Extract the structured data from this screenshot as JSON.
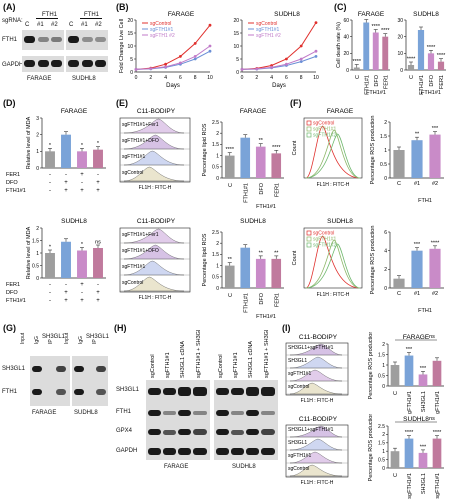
{
  "panels": {
    "A": {
      "label": "(A)",
      "sgrna_label": "sgRNA:",
      "lanes": [
        "C",
        "#1",
        "#2",
        "C",
        "#1",
        "#2"
      ],
      "group_headers": [
        "FTH1",
        "FTH1"
      ],
      "proteins": [
        "FTH1",
        "GAPDH"
      ],
      "cells": [
        "FARAGE",
        "SUDHL8"
      ]
    },
    "B": {
      "label": "(B)",
      "ylabel": "Fold Change Live Cell"
    },
    "C": {
      "label": "(C)",
      "ylabel": "Cell death rate (%)"
    },
    "D": {
      "label": "(D)",
      "ylabel": "Relative level of MDA",
      "row_labels": [
        "FER1",
        "DFO",
        "FTH1#1"
      ],
      "signs": [
        [
          "-",
          "-",
          "+",
          "-"
        ],
        [
          "-",
          "+",
          "-",
          "+"
        ],
        [
          "-",
          "+",
          "+",
          "+"
        ]
      ]
    },
    "E": {
      "label": "(E)",
      "probe": "C11-BODIPY",
      "flow_xlabel": "FL1H : FITC-H",
      "flow_ylabel": "Percentage lipid ROS"
    },
    "F": {
      "label": "(F)",
      "flow_xlabel": "FL1H : FITC-H",
      "count_label": "Count",
      "ylabel": "Percentage ROS production",
      "legend": [
        "sgControl",
        "sgFTH1#1",
        "sgFTH1#2"
      ]
    },
    "G": {
      "label": "(G)",
      "input_label": "Input",
      "igg_label": "IgG",
      "ip_label": "IP",
      "header": "SH3GL1",
      "proteins": [
        "SH3GL1",
        "FTH1"
      ],
      "cells": [
        "FARAGE",
        "SUDHL8"
      ]
    },
    "H": {
      "label": "(H)",
      "lanes": [
        "sgControl",
        "sgFTH1#1",
        "SH3GL1 cDNA",
        "sgFTH1#1 + SH3GL1 cDNA"
      ],
      "proteins": [
        "SH3GL1",
        "FTH1",
        "GPX4",
        "GAPDH"
      ],
      "cells": [
        "FARAGE",
        "SUDHL8"
      ]
    },
    "I": {
      "label": "(I)",
      "probe": "C11-BODIPY",
      "flow_xlabel": "FL1H : FITC-H",
      "ylabel": "Percentage ROS production",
      "ns": "ns",
      "flow_rows": [
        "SH3GL1+sgFTH1#1",
        "SH3GL1",
        "sgFTH1#1",
        "sgControl"
      ]
    }
  },
  "chart_data": [
    {
      "id": "B-FARAGE",
      "type": "line",
      "title": "FARAGE",
      "xlabel": "Days",
      "x": [
        0,
        2,
        4,
        6,
        8,
        10
      ],
      "xlim": [
        0,
        10
      ],
      "ylim": [
        0,
        20
      ],
      "yticks": [
        0,
        5,
        10,
        15,
        20
      ],
      "series": [
        {
          "name": "sgControl",
          "color": "#e0302d",
          "values": [
            1,
            1.5,
            3,
            6,
            11,
            18
          ]
        },
        {
          "name": "sgFTH1#1",
          "color": "#6b8fd6",
          "values": [
            1,
            1.2,
            1.8,
            3,
            5,
            8
          ]
        },
        {
          "name": "sgFTH1 #2",
          "color": "#c07ac8",
          "values": [
            1,
            1.3,
            2,
            3.5,
            6,
            10
          ]
        }
      ]
    },
    {
      "id": "B-SUDHL8",
      "type": "line",
      "title": "SUDHL8",
      "xlabel": "Days",
      "x": [
        0,
        2,
        4,
        6,
        8,
        10
      ],
      "xlim": [
        0,
        10
      ],
      "ylim": [
        0,
        20
      ],
      "yticks": [
        0,
        5,
        10,
        15,
        20
      ],
      "series": [
        {
          "name": "sgControl",
          "color": "#e0302d",
          "values": [
            1,
            1.4,
            2.5,
            5,
            10,
            19
          ]
        },
        {
          "name": "sgFTH1#1",
          "color": "#6b8fd6",
          "values": [
            1,
            1.1,
            1.6,
            2.5,
            4,
            6
          ]
        },
        {
          "name": "sgFTH1 #2",
          "color": "#c07ac8",
          "values": [
            1,
            1.2,
            1.8,
            3,
            5,
            8
          ]
        }
      ]
    },
    {
      "id": "C-FARAGE",
      "type": "bar",
      "title": "FARAGE",
      "categories": [
        "C",
        "FTH1#1",
        "DFO",
        "FER1"
      ],
      "group_label": "FTH1#1",
      "values": [
        3,
        57,
        45,
        40
      ],
      "ylim": [
        0,
        60
      ],
      "yticks": [
        0,
        20,
        40,
        60
      ],
      "stars": [
        "****",
        "",
        "****",
        "****"
      ],
      "colors": [
        "#9e9e9e",
        "#7aa3d8",
        "#c98bc8",
        "#c07a9d"
      ]
    },
    {
      "id": "C-SUDHL8",
      "type": "bar",
      "title": "SUDHL8",
      "categories": [
        "C",
        "FTH1#1",
        "DFO",
        "FER1"
      ],
      "group_label": "FTH1#1",
      "values": [
        3,
        24,
        10,
        5
      ],
      "ylim": [
        0,
        30
      ],
      "yticks": [
        0,
        10,
        20,
        30
      ],
      "stars": [
        "****",
        "",
        "****",
        "****"
      ],
      "colors": [
        "#9e9e9e",
        "#7aa3d8",
        "#c98bc8",
        "#c07a9d"
      ]
    },
    {
      "id": "D-FARAGE",
      "type": "bar",
      "title": "FARAGE",
      "values": [
        1.0,
        2.0,
        1.0,
        1.1
      ],
      "ylim": [
        0,
        3
      ],
      "yticks": [
        0,
        1,
        2,
        3
      ],
      "stars": [
        "*",
        "",
        "*",
        "*"
      ],
      "colors": [
        "#9e9e9e",
        "#7aa3d8",
        "#c98bc8",
        "#c07a9d"
      ]
    },
    {
      "id": "D-SUDHL8",
      "type": "bar",
      "title": "SUDHL8",
      "values": [
        1.0,
        1.45,
        1.1,
        1.2
      ],
      "ylim": [
        0,
        2.0
      ],
      "yticks": [
        0.0,
        0.5,
        1.0,
        1.5,
        2.0
      ],
      "stars": [
        "*",
        "",
        "*",
        "ns"
      ],
      "colors": [
        "#9e9e9e",
        "#7aa3d8",
        "#c98bc8",
        "#c07a9d"
      ]
    },
    {
      "id": "E-FARAGE",
      "type": "bar",
      "title": "FARAGE",
      "categories": [
        "C",
        "FTH1#1",
        "DFO",
        "FER1"
      ],
      "group_label": "FTH1#1",
      "values": [
        1.0,
        1.8,
        1.4,
        1.1
      ],
      "ylim": [
        0,
        2.5
      ],
      "yticks": [
        0.0,
        0.5,
        1.0,
        1.5,
        2.0,
        2.5
      ],
      "stars": [
        "****",
        "",
        "**",
        "****"
      ],
      "colors": [
        "#9e9e9e",
        "#7aa3d8",
        "#c98bc8",
        "#c07a9d"
      ],
      "flow_rows": [
        "sgFTH1#1+Fer1",
        "sgFTH1#1+DFO",
        "sgFTH1#1",
        "sgControl"
      ]
    },
    {
      "id": "E-SUDHL8",
      "type": "bar",
      "title": "SUDHL8",
      "categories": [
        "C",
        "FTH1#1",
        "DFO",
        "FER1"
      ],
      "group_label": "FTH1#1",
      "values": [
        1.0,
        1.8,
        1.3,
        1.3
      ],
      "ylim": [
        0,
        2.5
      ],
      "yticks": [
        0.0,
        0.5,
        1.0,
        1.5,
        2.0,
        2.5
      ],
      "stars": [
        "**",
        "",
        "**",
        "**"
      ],
      "colors": [
        "#9e9e9e",
        "#7aa3d8",
        "#c98bc8",
        "#c07a9d"
      ],
      "flow_rows": [
        "sgFTH1#1+Fer1",
        "sgFTH1#1+DFO",
        "sgFTH1#1",
        "sgControl"
      ]
    },
    {
      "id": "F-FARAGE",
      "type": "bar",
      "title": "FARAGE",
      "categories": [
        "C",
        "#1",
        "#2"
      ],
      "group_label": "FTH1",
      "values": [
        1.0,
        1.35,
        1.55
      ],
      "ylim": [
        0,
        2.0
      ],
      "yticks": [
        0.0,
        0.5,
        1.0,
        1.5,
        2.0
      ],
      "stars": [
        "",
        "**",
        "***"
      ],
      "colors": [
        "#9e9e9e",
        "#7aa3d8",
        "#c98bc8"
      ]
    },
    {
      "id": "F-SUDHL8",
      "type": "bar",
      "title": "SUDHL8",
      "categories": [
        "C",
        "#1",
        "#2"
      ],
      "group_label": "FTH1",
      "values": [
        1.0,
        4.0,
        4.2
      ],
      "ylim": [
        0,
        6
      ],
      "yticks": [
        0,
        2,
        4,
        6
      ],
      "stars": [
        "",
        "***",
        "****"
      ],
      "colors": [
        "#9e9e9e",
        "#7aa3d8",
        "#c98bc8"
      ]
    },
    {
      "id": "I-FARAGE",
      "type": "bar",
      "title": "FARAGE",
      "categories": [
        "C",
        "sgFTH1#1",
        "SH3GL1",
        "SH3GL1+ sgFTH1#1"
      ],
      "values": [
        1.0,
        1.45,
        0.55,
        1.2
      ],
      "ylim": [
        0,
        2.0
      ],
      "yticks": [
        0.0,
        0.5,
        1.0,
        1.5,
        2.0
      ],
      "stars": [
        "",
        "***",
        "***",
        ""
      ],
      "colors": [
        "#9e9e9e",
        "#7aa3d8",
        "#c98bc8",
        "#c07a9d"
      ]
    },
    {
      "id": "I-SUDHL8",
      "type": "bar",
      "title": "SUDHL8",
      "categories": [
        "C",
        "sgFTH1#1",
        "SH3GL1",
        "SH3GL1+ sgFTH1#1"
      ],
      "values": [
        1.0,
        1.75,
        0.9,
        1.75
      ],
      "ylim": [
        0,
        2.5
      ],
      "yticks": [
        0.0,
        0.5,
        1.0,
        1.5,
        2.0,
        2.5
      ],
      "stars": [
        "",
        "****",
        "***",
        "****"
      ],
      "colors": [
        "#9e9e9e",
        "#7aa3d8",
        "#c98bc8",
        "#c07a9d"
      ]
    }
  ]
}
